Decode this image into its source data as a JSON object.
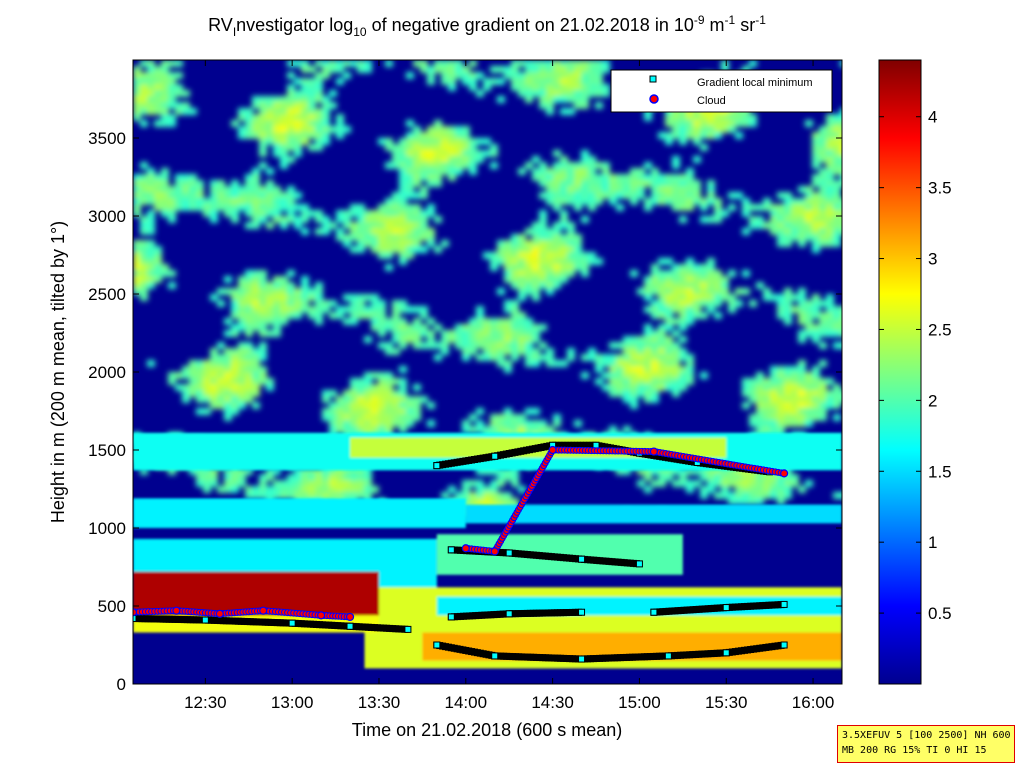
{
  "title": {
    "part1": "RV",
    "sub1": "I",
    "part2": "nvestigator log",
    "sub2": "10",
    "part3": " of negative gradient on 21.02.2018 in 10",
    "sup1": "-9",
    "part4": " m",
    "sup2": "-1",
    "part5": " sr",
    "sup3": "-1"
  },
  "info_box": {
    "line1": "3.5XEFUV 5 [100 2500] NH 600",
    "line2": "MB 200 RG 15% TI 0 HI 15"
  },
  "colors": {
    "cloud_fill": "#ff0000",
    "cloud_edge": "#0000ff",
    "minimum_fill": "#00ffff",
    "minimum_edge": "#000000"
  },
  "chart_data": {
    "type": "heatmap",
    "xlabel": "Time on 21.02.2018 (600 s mean)",
    "ylabel": "Height in m (200 m mean, tilted by 1°)",
    "x_range": [
      "12:05",
      "16:10"
    ],
    "ylim": [
      0,
      4000
    ],
    "x_ticks": [
      "12:30",
      "13:00",
      "13:30",
      "14:00",
      "14:30",
      "15:00",
      "15:30",
      "16:00"
    ],
    "y_ticks": [
      "0",
      "500",
      "1000",
      "1500",
      "2000",
      "2500",
      "3000",
      "3500"
    ],
    "colorbar": {
      "colormap": "jet",
      "range": [
        0,
        4.4
      ],
      "ticks": [
        "0.5",
        "1",
        "1.5",
        "2",
        "2.5",
        "3",
        "3.5",
        "4"
      ]
    },
    "legend": {
      "position": "top-right",
      "entries": [
        "Gradient local minimum",
        "Cloud"
      ]
    },
    "series": [
      {
        "name": "Gradient local minimum",
        "x": [
          "12:05",
          "12:30",
          "13:00",
          "13:20",
          "13:40"
        ],
        "y": [
          420,
          410,
          390,
          370,
          350
        ]
      },
      {
        "name": "Gradient local minimum",
        "x": [
          "13:50",
          "14:10",
          "14:30",
          "14:45",
          "15:00",
          "15:20",
          "15:45"
        ],
        "y": [
          1400,
          1460,
          1530,
          1530,
          1480,
          1420,
          1360
        ]
      },
      {
        "name": "Gradient local minimum",
        "x": [
          "13:55",
          "14:15",
          "14:40",
          "15:00"
        ],
        "y": [
          860,
          840,
          800,
          770
        ]
      },
      {
        "name": "Gradient local minimum",
        "x": [
          "13:55",
          "14:15",
          "14:40"
        ],
        "y": [
          430,
          450,
          460
        ]
      },
      {
        "name": "Gradient local minimum",
        "x": [
          "15:05",
          "15:30",
          "15:50"
        ],
        "y": [
          460,
          490,
          510
        ]
      },
      {
        "name": "Gradient local minimum",
        "x": [
          "13:50",
          "14:10",
          "14:40",
          "15:10",
          "15:30",
          "15:50"
        ],
        "y": [
          250,
          180,
          160,
          180,
          200,
          250
        ]
      },
      {
        "name": "Cloud",
        "x": [
          "12:05",
          "12:20",
          "12:35",
          "12:50",
          "13:10",
          "13:20"
        ],
        "y": [
          460,
          470,
          450,
          470,
          440,
          430
        ]
      },
      {
        "name": "Cloud",
        "x": [
          "14:00",
          "14:10",
          "14:30",
          "15:05",
          "15:50"
        ],
        "y": [
          870,
          850,
          1500,
          1490,
          1350
        ]
      }
    ]
  }
}
